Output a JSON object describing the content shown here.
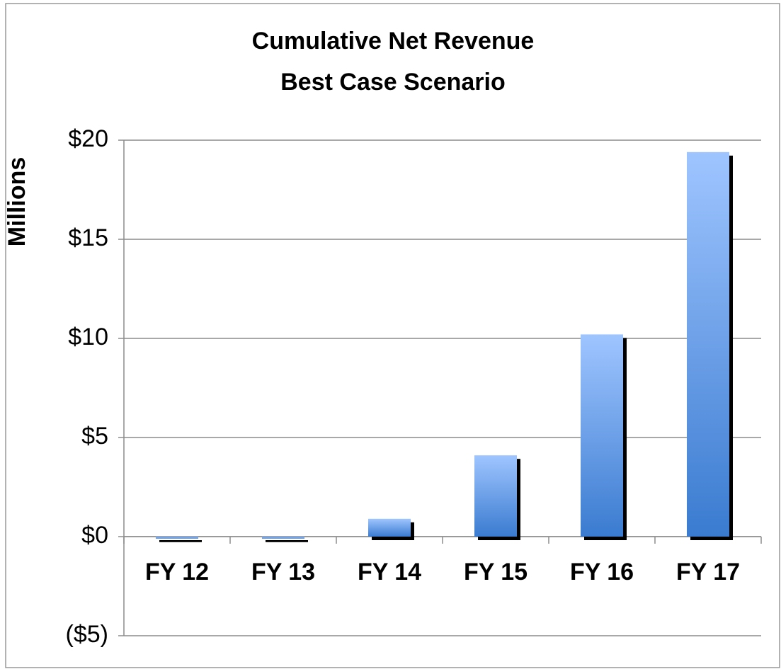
{
  "chart_data": {
    "type": "bar",
    "title": "Cumulative Net Revenue",
    "subtitle": "Best Case Scenario",
    "y_label": "Millions",
    "categories": [
      "FY 12",
      "FY 13",
      "FY 14",
      "FY 15",
      "FY 16",
      "FY 17"
    ],
    "values": [
      -0.1,
      -0.1,
      0.9,
      4.1,
      10.2,
      19.4
    ],
    "color": "#3a7bd0",
    "color_top": "#9fc5ff",
    "shadow": true,
    "negative_tick_color": "#ff0000",
    "ylim": [
      -5,
      20
    ],
    "yticks": [
      {
        "value": -5,
        "label": "($5)"
      },
      {
        "value": 0,
        "label": "$0"
      },
      {
        "value": 5,
        "label": "$5"
      },
      {
        "value": 10,
        "label": "$10"
      },
      {
        "value": 15,
        "label": "$15"
      },
      {
        "value": 20,
        "label": "$20"
      }
    ],
    "grid": true
  }
}
